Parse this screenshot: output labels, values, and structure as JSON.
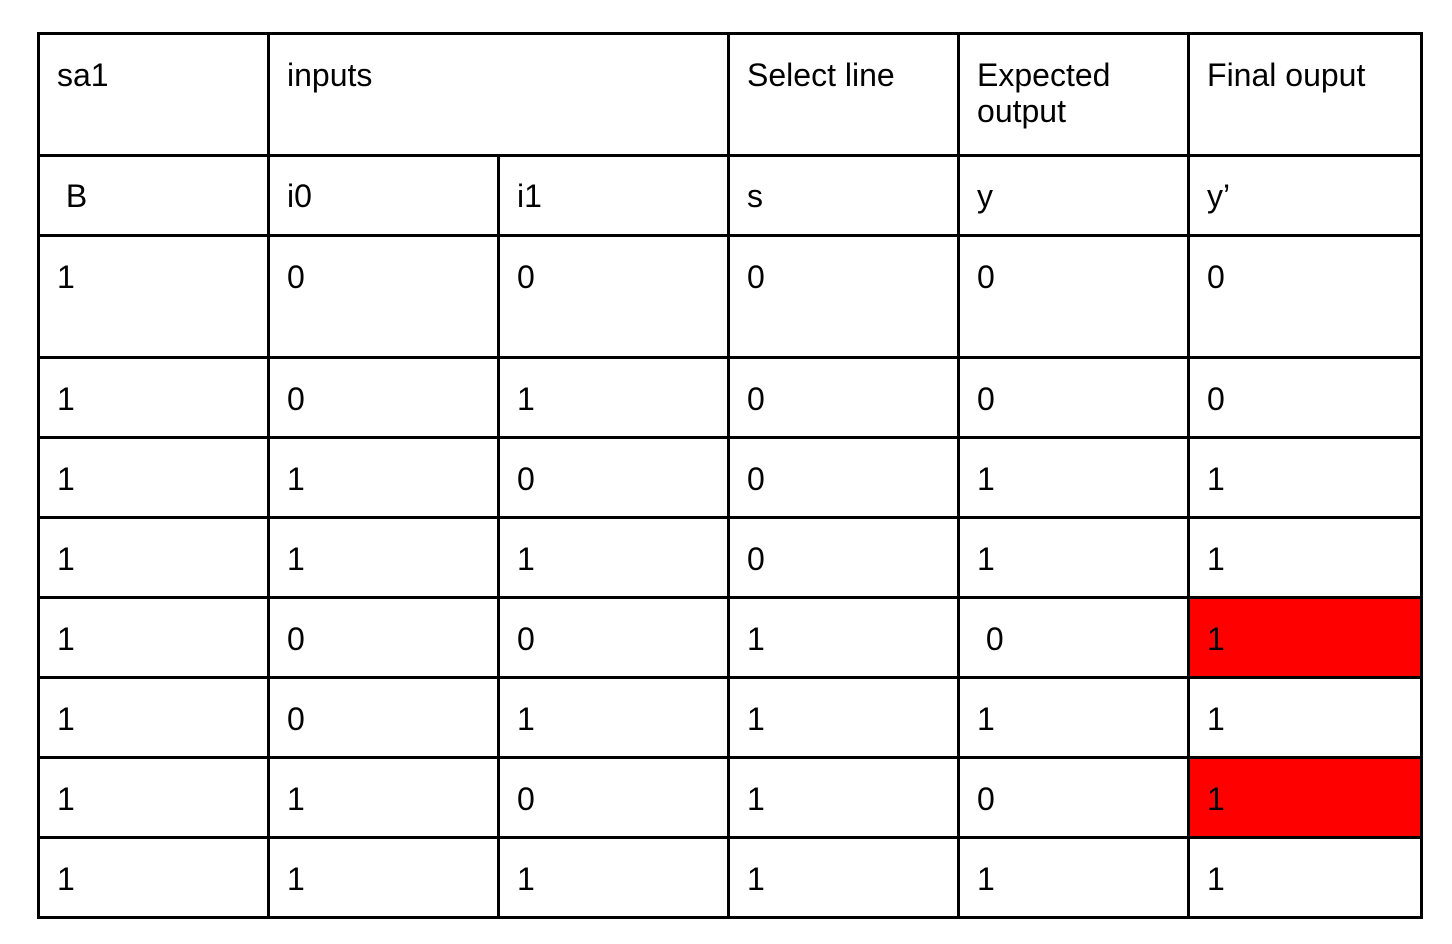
{
  "header_row_1": {
    "sa1": "sa1",
    "inputs": "inputs",
    "select_line": "Select line",
    "expected_output": "Expected output",
    "final_output": "Final ouput"
  },
  "header_row_2": [
    " B",
    "i0",
    "i1",
    "s",
    "y",
    "y’"
  ],
  "rows": [
    {
      "B": "1",
      "i0": "0",
      "i1": "0",
      "s": "0",
      "y": "0",
      "y_prime": "0",
      "fault": false
    },
    {
      "B": "1",
      "i0": "0",
      "i1": "1",
      "s": "0",
      "y": "0",
      "y_prime": "0",
      "fault": false
    },
    {
      "B": "1",
      "i0": "1",
      "i1": "0",
      "s": "0",
      "y": "1",
      "y_prime": "1",
      "fault": false
    },
    {
      "B": "1",
      "i0": "1",
      "i1": "1",
      "s": "0",
      "y": "1",
      "y_prime": "1",
      "fault": false
    },
    {
      "B": "1",
      "i0": "0",
      "i1": "0",
      "s": "1",
      "y": " 0",
      "y_prime": "1",
      "fault": true
    },
    {
      "B": "1",
      "i0": "0",
      "i1": "1",
      "s": "1",
      "y": "1",
      "y_prime": "1",
      "fault": false
    },
    {
      "B": "1",
      "i0": "1",
      "i1": "0",
      "s": "1",
      "y": "0",
      "y_prime": "1",
      "fault": true
    },
    {
      "B": "1",
      "i0": "1",
      "i1": "1",
      "s": "1",
      "y": "1",
      "y_prime": "1",
      "fault": false
    }
  ],
  "colors": {
    "fault_highlight": "#ff0000",
    "border": "#000000"
  }
}
